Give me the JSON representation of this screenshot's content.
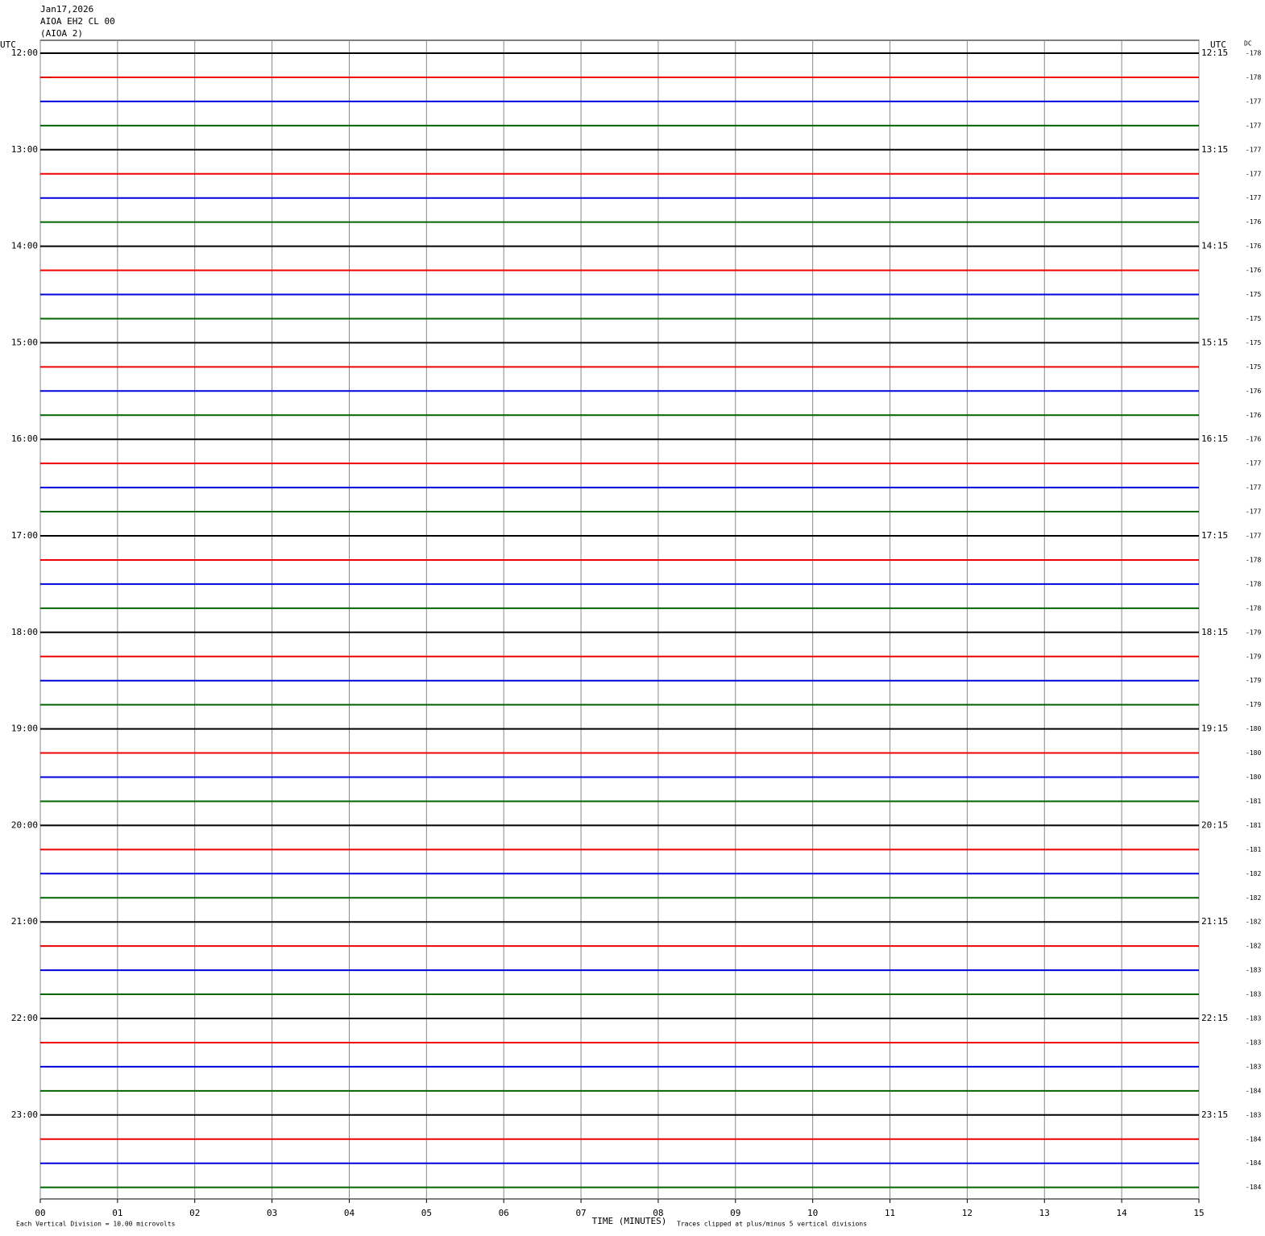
{
  "chart_data": {
    "type": "helicorder",
    "title_lines": [
      "Jan17,2026",
      "AIOA EH2 CL 00",
      "(AIOA 2)"
    ],
    "left_axis_title": "UTC",
    "right_axis_title": "UTC",
    "dc_title": "DC",
    "x_label": "TIME (MINUTES)",
    "scale_note": "Each Vertical Division =   10.00 microvolts",
    "clip_note": "Traces clipped at plus/minus 5 vertical divisions",
    "trace_colors": [
      "#000000",
      "#ee0000",
      "#0000dd",
      "#006400"
    ],
    "left_times": [
      "12:00",
      "13:00",
      "14:00",
      "15:00",
      "16:00",
      "17:00",
      "18:00",
      "19:00",
      "20:00",
      "21:00",
      "22:00",
      "23:00"
    ],
    "right_times": [
      "12:15",
      "13:15",
      "14:15",
      "15:15",
      "16:15",
      "17:15",
      "18:15",
      "19:15",
      "20:15",
      "21:15",
      "22:15",
      "23:15"
    ],
    "dc_values": [
      -178,
      -178,
      -177,
      -177,
      -177,
      -177,
      -177,
      -176,
      -176,
      -176,
      -175,
      -175,
      -175,
      -175,
      -176,
      -176,
      -176,
      -177,
      -177,
      -177,
      -177,
      -178,
      -178,
      -178,
      -179,
      -179,
      -179,
      -179,
      -180,
      -180,
      -180,
      -181,
      -181,
      -181,
      -182,
      -182,
      -182,
      -182,
      -183,
      -183,
      -183,
      -183,
      -183,
      -184,
      -183,
      -184,
      -184,
      -184
    ],
    "xlim": [
      0,
      15
    ],
    "xticks": [
      {
        "value": 0,
        "label": "00"
      },
      {
        "value": 1,
        "label": "01"
      },
      {
        "value": 2,
        "label": "02"
      },
      {
        "value": 3,
        "label": "03"
      },
      {
        "value": 4,
        "label": "04"
      },
      {
        "value": 5,
        "label": "05"
      },
      {
        "value": 6,
        "label": "06"
      },
      {
        "value": 7,
        "label": "07"
      },
      {
        "value": 8,
        "label": "08"
      },
      {
        "value": 9,
        "label": "09"
      },
      {
        "value": 10,
        "label": "10"
      },
      {
        "value": 11,
        "label": "11"
      },
      {
        "value": 12,
        "label": "12"
      },
      {
        "value": 13,
        "label": "13"
      },
      {
        "value": 14,
        "label": "14"
      },
      {
        "value": 15,
        "label": "15"
      }
    ],
    "grid": true
  }
}
